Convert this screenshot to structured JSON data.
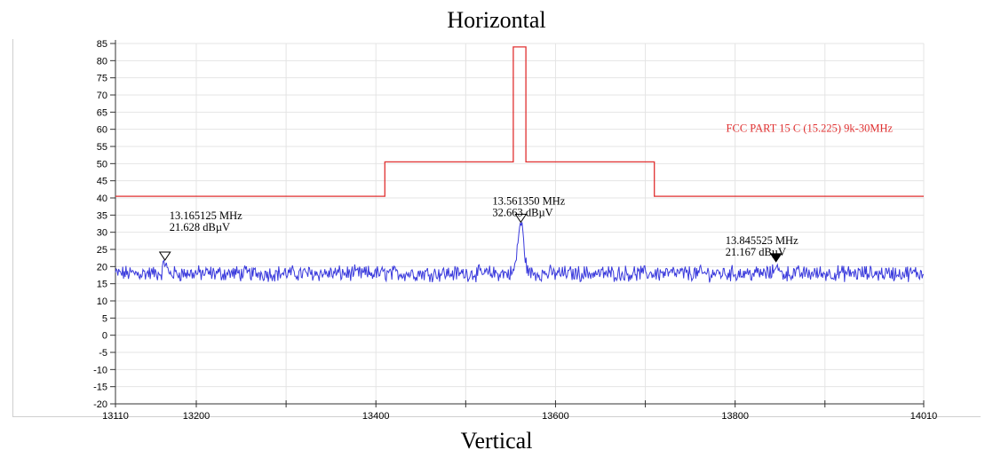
{
  "header": {
    "title": "Horizontal"
  },
  "footer": {
    "caption": "Vertical"
  },
  "chart_data": {
    "type": "line",
    "title": "Horizontal",
    "xlabel": "",
    "ylabel": "",
    "xlim": [
      13110,
      14010
    ],
    "ylim": [
      -20,
      85
    ],
    "x_tick_labels": [
      13110,
      13200,
      13400,
      13600,
      13800,
      14010
    ],
    "x_minor_ticks": [
      13300,
      13500,
      13700,
      13900
    ],
    "y_ticks": [
      -20,
      -15,
      -10,
      -5,
      0,
      5,
      10,
      15,
      20,
      25,
      30,
      35,
      40,
      45,
      50,
      55,
      60,
      65,
      70,
      75,
      80,
      85
    ],
    "grid": true,
    "limit_line": {
      "name": "FCC PART 15 C (15.225) 9k-30MHz",
      "color": "#e03030",
      "x": [
        13110,
        13410,
        13410,
        13553,
        13553,
        13567,
        13567,
        13710,
        13710,
        14010
      ],
      "y": [
        40.5,
        40.5,
        50.5,
        50.5,
        84,
        84,
        50.5,
        50.5,
        40.5,
        40.5
      ]
    },
    "trace": {
      "color": "#3a3adc",
      "baseline": 18,
      "peak": {
        "x": 13561.35,
        "y": 32.663
      }
    },
    "markers": [
      {
        "freq_label": "13.165125 MHz",
        "level_label": "21.628 dBµV",
        "x": 13165.125,
        "y": 21.628,
        "filled": false
      },
      {
        "freq_label": "13.561350 MHz",
        "level_label": "32.663 dBµV",
        "x": 13561.35,
        "y": 32.663,
        "filled": false
      },
      {
        "freq_label": "13.845525 MHz",
        "level_label": "21.167 dBµV",
        "x": 13845.525,
        "y": 21.167,
        "filled": true
      }
    ]
  }
}
